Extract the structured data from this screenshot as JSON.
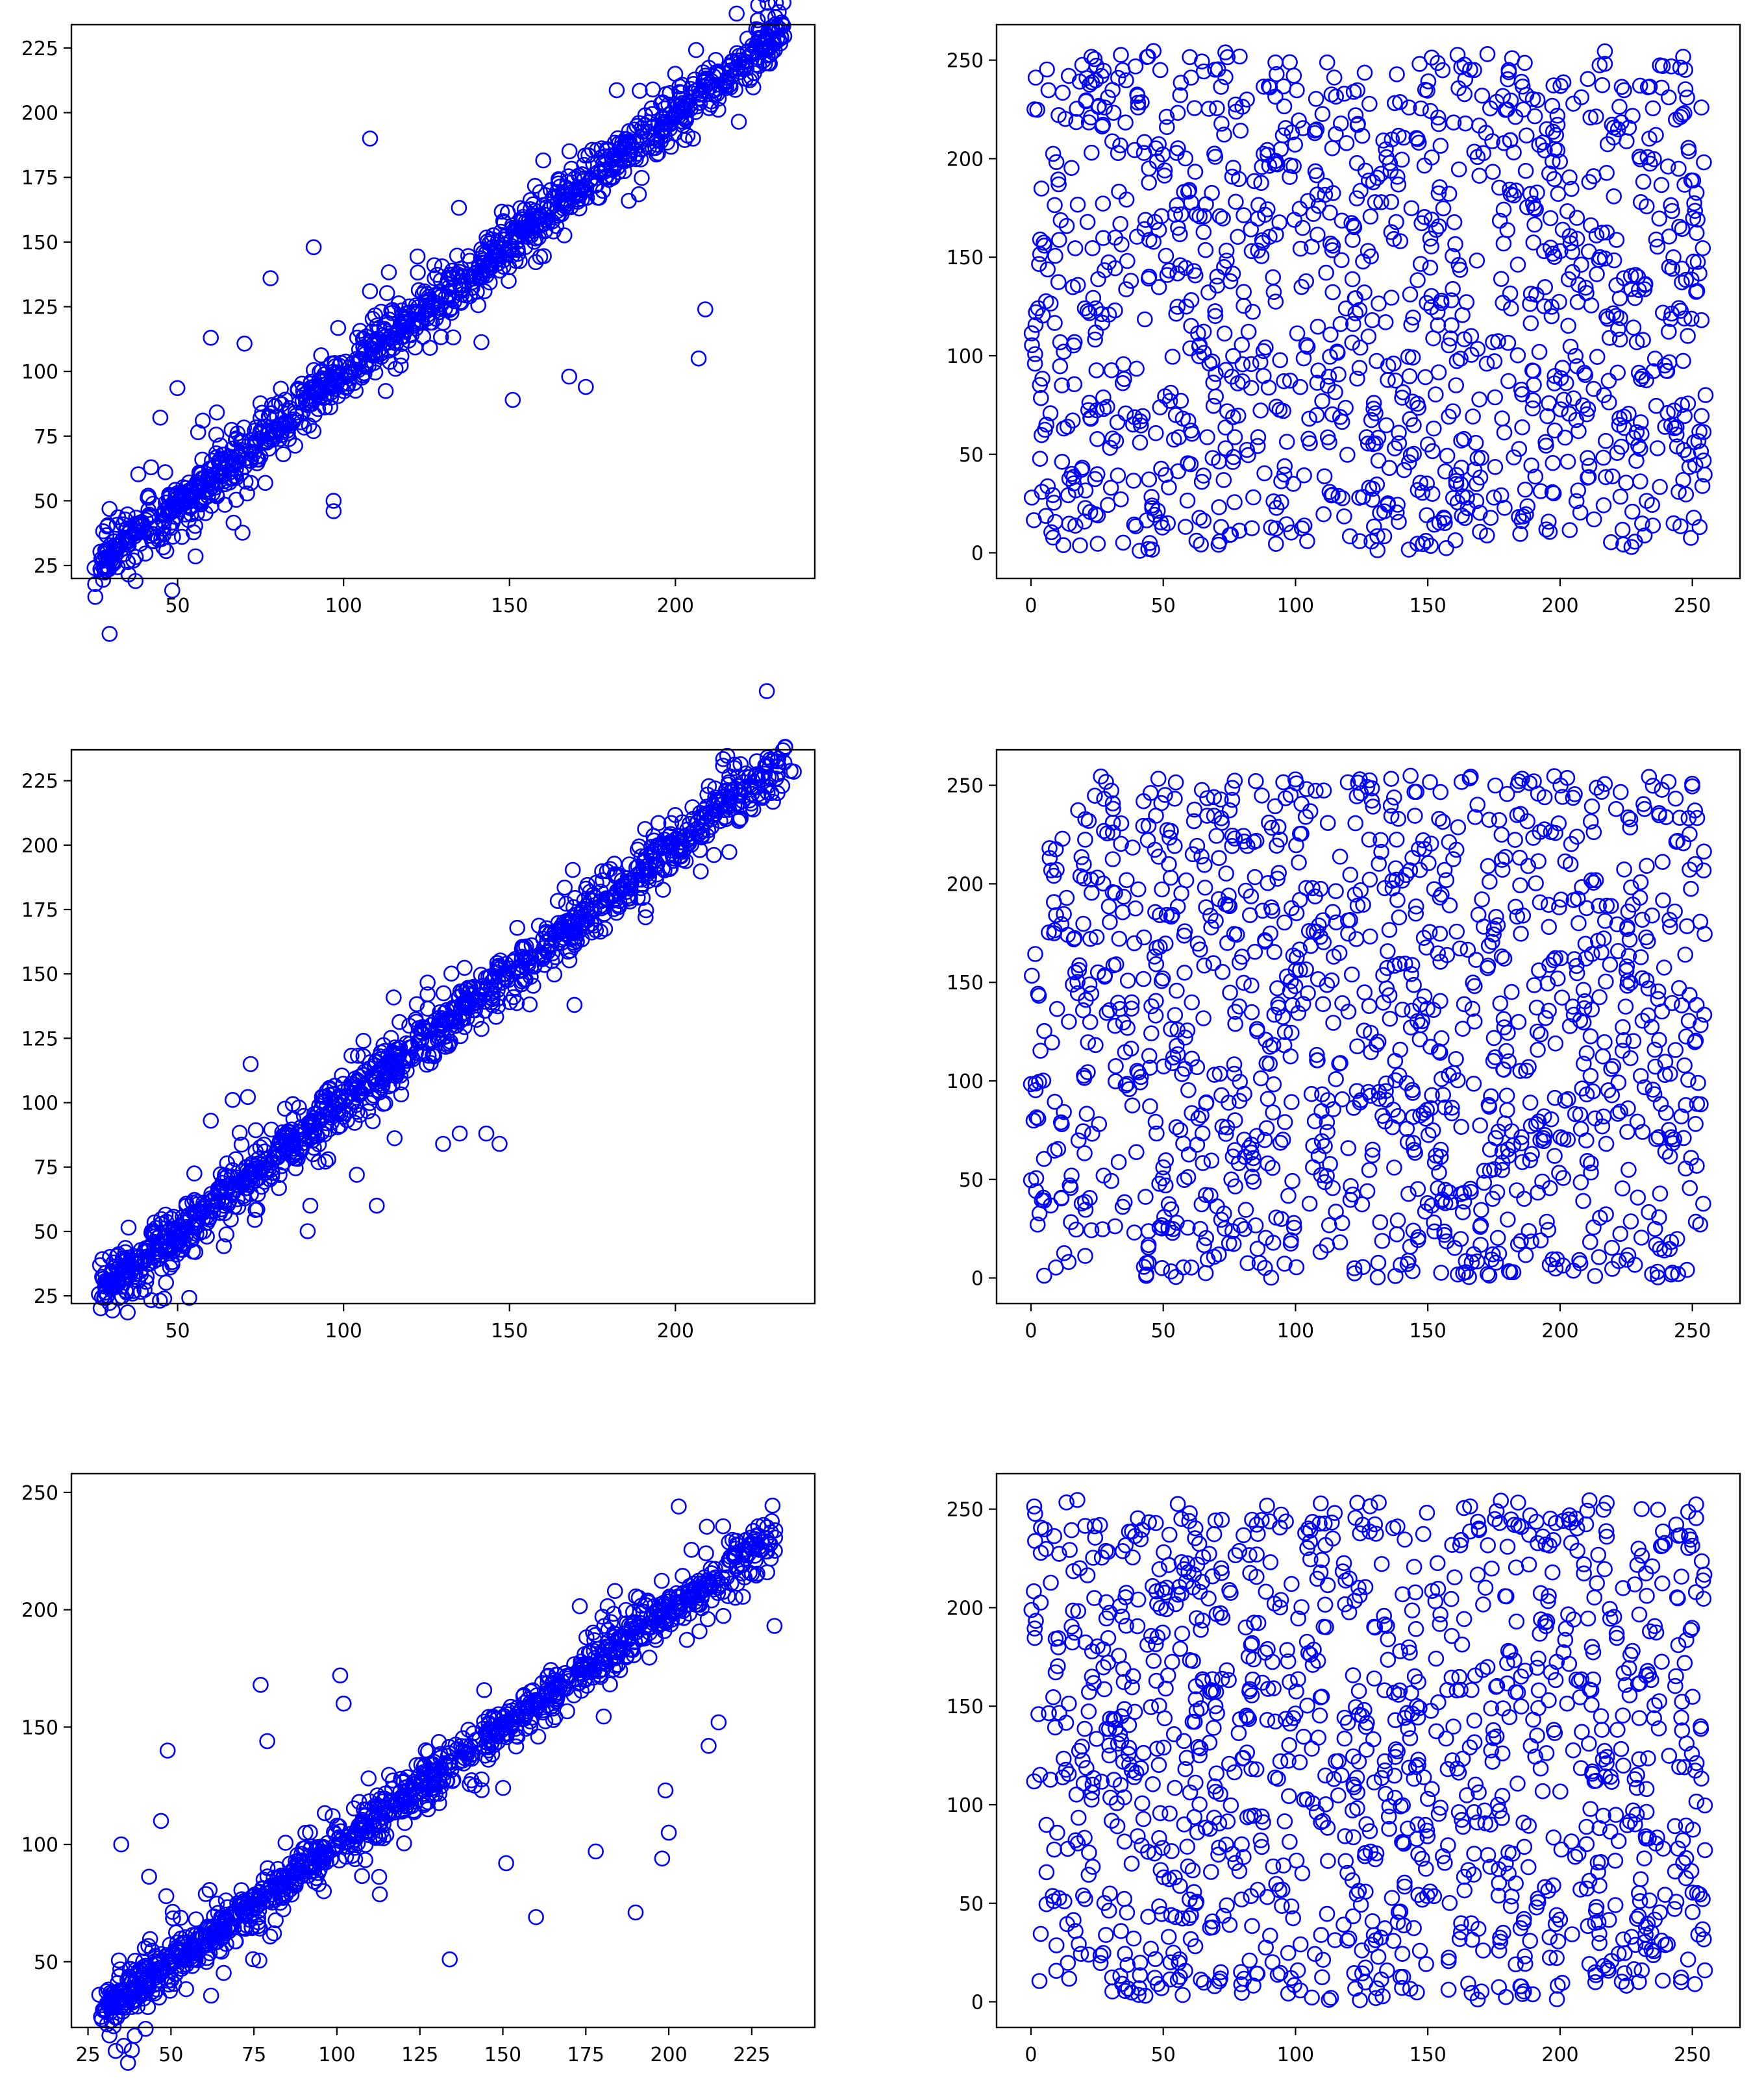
{
  "figure": {
    "marker": "open-circle",
    "point_color": "#0000ff",
    "points_per_panel": 1200
  },
  "chart_data": [
    {
      "type": "scatter",
      "row": 1,
      "col": 1,
      "pattern": "correlated",
      "title": "",
      "xlabel": "",
      "ylabel": "",
      "xlim": [
        18,
        242
      ],
      "ylim": [
        20,
        234
      ],
      "xticks": [
        50,
        100,
        150,
        200
      ],
      "yticks": [
        25,
        50,
        75,
        100,
        125,
        150,
        175,
        200,
        225
      ],
      "grid": false,
      "legend": "none",
      "trend": {
        "x_range": [
          27,
          232
        ],
        "slope": 1.0,
        "intercept": -1
      },
      "outliers": [
        [
          108,
          190
        ],
        [
          207,
          105
        ],
        [
          209,
          124
        ],
        [
          168,
          98
        ],
        [
          173,
          94
        ],
        [
          151,
          89
        ],
        [
          97,
          46
        ],
        [
          97,
          50
        ],
        [
          78,
          136
        ],
        [
          60,
          113
        ],
        [
          91,
          148
        ],
        [
          189,
          196
        ]
      ]
    },
    {
      "type": "scatter",
      "row": 1,
      "col": 2,
      "pattern": "uniform",
      "title": "",
      "xlabel": "",
      "ylabel": "",
      "xlim": [
        -13,
        268
      ],
      "ylim": [
        -13,
        268
      ],
      "xticks": [
        0,
        50,
        100,
        150,
        200,
        250
      ],
      "yticks": [
        0,
        50,
        100,
        150,
        200,
        250
      ],
      "grid": false,
      "legend": "none",
      "range": [
        0,
        255
      ]
    },
    {
      "type": "scatter",
      "row": 2,
      "col": 1,
      "pattern": "correlated",
      "title": "",
      "xlabel": "",
      "ylabel": "",
      "xlim": [
        18,
        242
      ],
      "ylim": [
        22,
        237
      ],
      "xticks": [
        50,
        100,
        150,
        200
      ],
      "yticks": [
        25,
        50,
        75,
        100,
        125,
        150,
        175,
        200,
        225
      ],
      "grid": false,
      "legend": "none",
      "trend": {
        "x_range": [
          28,
          233
        ],
        "slope": 1.0,
        "intercept": 0
      },
      "outliers": [
        [
          110,
          60
        ],
        [
          104,
          72
        ],
        [
          90,
          60
        ],
        [
          130,
          84
        ],
        [
          135,
          88
        ],
        [
          143,
          88
        ],
        [
          147,
          84
        ],
        [
          191,
          172
        ],
        [
          183,
          176
        ],
        [
          72,
          115
        ],
        [
          60,
          93
        ],
        [
          106,
          124
        ]
      ]
    },
    {
      "type": "scatter",
      "row": 2,
      "col": 2,
      "pattern": "uniform",
      "title": "",
      "xlabel": "",
      "ylabel": "",
      "xlim": [
        -13,
        268
      ],
      "ylim": [
        -13,
        268
      ],
      "xticks": [
        0,
        50,
        100,
        150,
        200,
        250
      ],
      "yticks": [
        0,
        50,
        100,
        150,
        200,
        250
      ],
      "grid": false,
      "legend": "none",
      "range": [
        0,
        255
      ]
    },
    {
      "type": "scatter",
      "row": 3,
      "col": 1,
      "pattern": "correlated",
      "title": "",
      "xlabel": "",
      "ylabel": "",
      "xlim": [
        20,
        244
      ],
      "ylim": [
        22,
        258
      ],
      "xticks": [
        25,
        50,
        75,
        100,
        125,
        150,
        175,
        200,
        225
      ],
      "yticks": [
        50,
        100,
        150,
        200,
        250
      ],
      "grid": false,
      "legend": "none",
      "trend": {
        "x_range": [
          30,
          232
        ],
        "slope": 1.0,
        "intercept": 0
      },
      "outliers": [
        [
          203,
          244
        ],
        [
          77,
          168
        ],
        [
          79,
          144
        ],
        [
          101,
          172
        ],
        [
          102,
          160
        ],
        [
          151,
          92
        ],
        [
          160,
          69
        ],
        [
          134,
          51
        ],
        [
          190,
          71
        ],
        [
          198,
          94
        ],
        [
          200,
          105
        ],
        [
          212,
          142
        ],
        [
          215,
          152
        ],
        [
          199,
          123
        ],
        [
          178,
          97
        ],
        [
          35,
          100
        ],
        [
          49,
          140
        ],
        [
          47,
          110
        ]
      ]
    },
    {
      "type": "scatter",
      "row": 3,
      "col": 2,
      "pattern": "uniform",
      "title": "",
      "xlabel": "",
      "ylabel": "",
      "xlim": [
        -13,
        268
      ],
      "ylim": [
        -13,
        268
      ],
      "xticks": [
        0,
        50,
        100,
        150,
        200,
        250
      ],
      "yticks": [
        0,
        50,
        100,
        150,
        200,
        250
      ],
      "grid": false,
      "legend": "none",
      "range": [
        0,
        255
      ]
    }
  ]
}
